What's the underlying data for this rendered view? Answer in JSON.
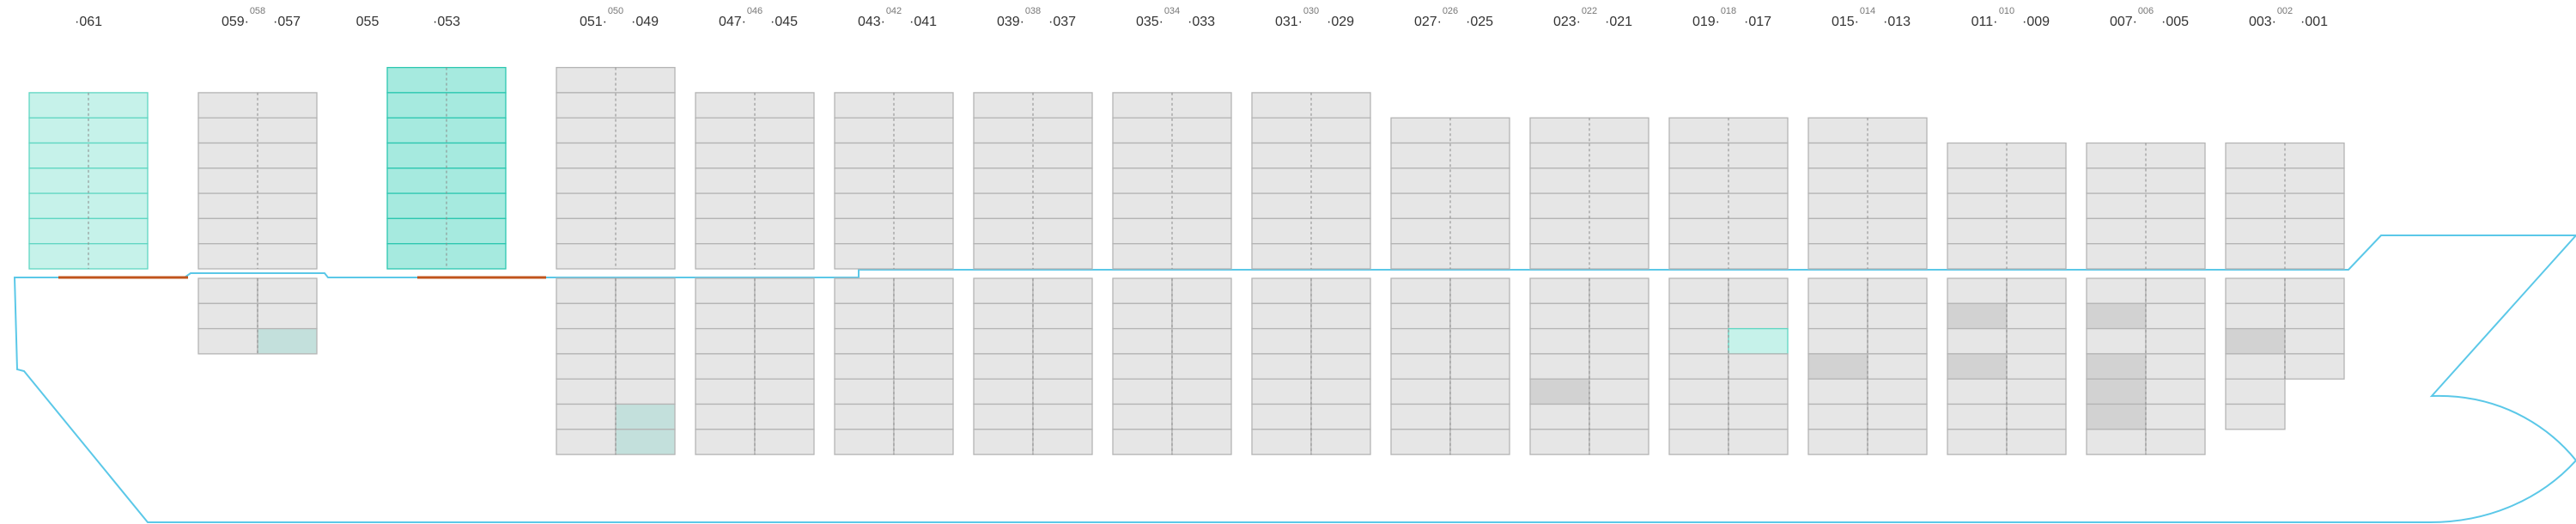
{
  "colors": {
    "hull": "#5bc8e8",
    "hatch": "#c0541c",
    "cell_empty": "#e6e6e6",
    "cell_stroke": "#b4b4b4",
    "cell_gray": "#d2d2d2",
    "cell_teal_hold": "#c3e0dc",
    "cell_cyan": "#c6f2ea",
    "cell_cyan_stroke": "#5fd6c2",
    "cell_teal_strong": "#a6eadf",
    "cell_teal_strong_stroke": "#2cc7b0",
    "label": "#333333"
  },
  "bays": [
    {
      "id": "061",
      "labels": {
        "left": "",
        "top": "",
        "right": "",
        "single": "061"
      },
      "deck": {
        "tiers": 7,
        "style": "cyan",
        "marked": []
      },
      "hold": null
    },
    {
      "id": "059-057",
      "labels": {
        "left": "059",
        "top": "058",
        "right": "057",
        "single": ""
      },
      "deck": {
        "tiers": 7,
        "style": "normal",
        "marked": []
      },
      "hold": {
        "tiers": 3,
        "marked": [
          {
            "row": 2,
            "col": 1,
            "style": "teal"
          }
        ]
      }
    },
    {
      "id": "055",
      "labels": {
        "left": "",
        "top": "",
        "right": "",
        "single": "055"
      },
      "deck": null,
      "hold": null
    },
    {
      "id": "053",
      "labels": {
        "left": "",
        "top": "",
        "right": "",
        "single": "053"
      },
      "deck": {
        "tiers": 8,
        "style": "strong",
        "marked": []
      },
      "hold": null
    },
    {
      "id": "051-049",
      "labels": {
        "left": "051",
        "top": "050",
        "right": "049",
        "single": ""
      },
      "deck": {
        "tiers": 8,
        "style": "normal",
        "marked": []
      },
      "hold": {
        "tiers": 7,
        "marked": [
          {
            "row": 5,
            "col": 1,
            "style": "teal"
          },
          {
            "row": 6,
            "col": 1,
            "style": "teal"
          }
        ]
      }
    },
    {
      "id": "047-045",
      "labels": {
        "left": "047",
        "top": "046",
        "right": "045",
        "single": ""
      },
      "deck": {
        "tiers": 7,
        "style": "normal",
        "marked": []
      },
      "hold": {
        "tiers": 7,
        "marked": []
      }
    },
    {
      "id": "043-041",
      "labels": {
        "left": "043",
        "top": "042",
        "right": "041",
        "single": ""
      },
      "deck": {
        "tiers": 7,
        "style": "normal",
        "marked": []
      },
      "hold": {
        "tiers": 7,
        "marked": []
      }
    },
    {
      "id": "039-037",
      "labels": {
        "left": "039",
        "top": "038",
        "right": "037",
        "single": ""
      },
      "deck": {
        "tiers": 7,
        "style": "normal",
        "marked": []
      },
      "hold": {
        "tiers": 7,
        "marked": []
      }
    },
    {
      "id": "035-033",
      "labels": {
        "left": "035",
        "top": "034",
        "right": "033",
        "single": ""
      },
      "deck": {
        "tiers": 7,
        "style": "normal",
        "marked": []
      },
      "hold": {
        "tiers": 7,
        "marked": []
      }
    },
    {
      "id": "031-029",
      "labels": {
        "left": "031",
        "top": "030",
        "right": "029",
        "single": ""
      },
      "deck": {
        "tiers": 7,
        "style": "normal",
        "marked": []
      },
      "hold": {
        "tiers": 7,
        "marked": []
      }
    },
    {
      "id": "027-025",
      "labels": {
        "left": "027",
        "top": "026",
        "right": "025",
        "single": ""
      },
      "deck": {
        "tiers": 6,
        "style": "normal",
        "marked": []
      },
      "hold": {
        "tiers": 7,
        "marked": []
      }
    },
    {
      "id": "023-021",
      "labels": {
        "left": "023",
        "top": "022",
        "right": "021",
        "single": ""
      },
      "deck": {
        "tiers": 6,
        "style": "normal",
        "marked": []
      },
      "hold": {
        "tiers": 7,
        "marked": [
          {
            "row": 4,
            "col": 0,
            "style": "gray"
          }
        ]
      }
    },
    {
      "id": "019-017",
      "labels": {
        "left": "019",
        "top": "018",
        "right": "017",
        "single": ""
      },
      "deck": {
        "tiers": 6,
        "style": "normal",
        "marked": []
      },
      "hold": {
        "tiers": 7,
        "marked": [
          {
            "row": 2,
            "col": 1,
            "style": "cyan"
          }
        ]
      }
    },
    {
      "id": "015-013",
      "labels": {
        "left": "015",
        "top": "014",
        "right": "013",
        "single": ""
      },
      "deck": {
        "tiers": 6,
        "style": "normal",
        "marked": []
      },
      "hold": {
        "tiers": 7,
        "marked": [
          {
            "row": 3,
            "col": 0,
            "style": "gray"
          }
        ]
      }
    },
    {
      "id": "011-009",
      "labels": {
        "left": "011",
        "top": "010",
        "right": "009",
        "single": ""
      },
      "deck": {
        "tiers": 5,
        "style": "normal",
        "marked": []
      },
      "hold": {
        "tiers": 7,
        "marked": [
          {
            "row": 1,
            "col": 0,
            "style": "gray"
          },
          {
            "row": 3,
            "col": 0,
            "style": "gray"
          }
        ]
      }
    },
    {
      "id": "007-005",
      "labels": {
        "left": "007",
        "top": "006",
        "right": "005",
        "single": ""
      },
      "deck": {
        "tiers": 5,
        "style": "normal",
        "marked": []
      },
      "hold": {
        "tiers": 7,
        "marked": [
          {
            "row": 1,
            "col": 0,
            "style": "gray"
          },
          {
            "row": 3,
            "col": 0,
            "style": "gray"
          },
          {
            "row": 4,
            "col": 0,
            "style": "gray"
          },
          {
            "row": 5,
            "col": 0,
            "style": "gray"
          }
        ]
      }
    },
    {
      "id": "003-001",
      "labels": {
        "left": "003",
        "top": "002",
        "right": "001",
        "single": ""
      },
      "deck": {
        "tiers": 5,
        "style": "normal",
        "marked": []
      },
      "hold": {
        "tiers": 6,
        "shape": "stepped",
        "marked": [
          {
            "row": 2,
            "col": 0,
            "style": "gray"
          }
        ]
      }
    }
  ]
}
